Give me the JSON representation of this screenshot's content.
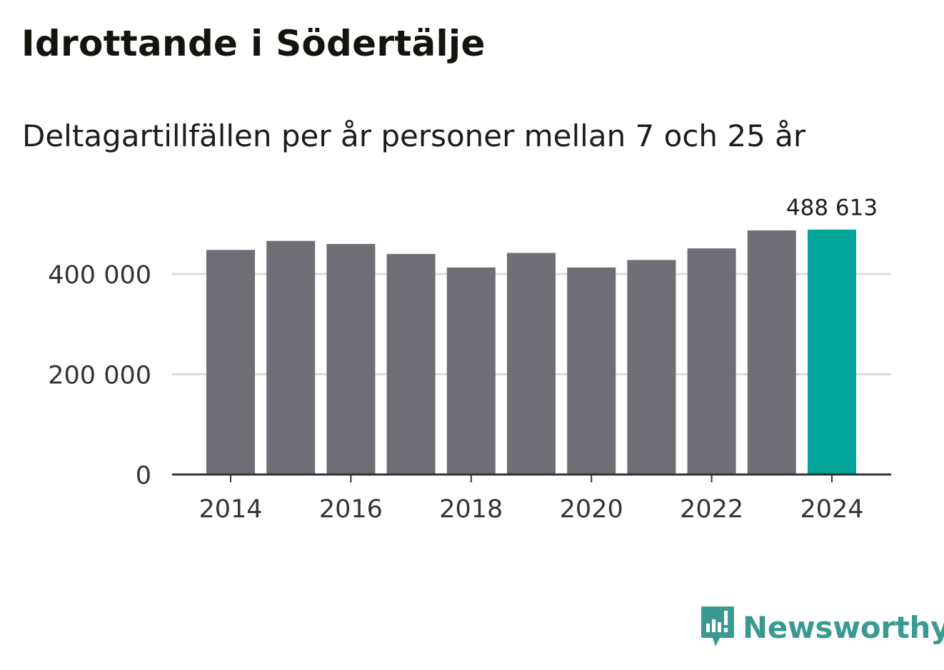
{
  "title": "Idrottande i Södertälje",
  "subtitle": "Deltagartillfällen per år personer mellan 7 och 25 år",
  "brand": {
    "name": "Newsworthy",
    "color": "#3a9a92",
    "icon": "newsworthy-logo-icon"
  },
  "colors": {
    "bar": "#6f6e74",
    "highlight": "#00a498",
    "grid": "#dcdcdc",
    "axis": "#333333"
  },
  "chart_data": {
    "type": "bar",
    "title": "Idrottande i Södertälje",
    "subtitle": "Deltagartillfällen per år personer mellan 7 och 25 år",
    "xlabel": "",
    "ylabel": "",
    "categories": [
      "2014",
      "2015",
      "2016",
      "2017",
      "2018",
      "2019",
      "2020",
      "2021",
      "2022",
      "2023",
      "2024"
    ],
    "values": [
      448000,
      466000,
      460000,
      440000,
      413000,
      442000,
      413000,
      428000,
      451000,
      487000,
      488613
    ],
    "highlight_index": 10,
    "annotation": {
      "category": "2024",
      "label": "488 613"
    },
    "ylim": [
      0,
      500000
    ],
    "yticks": [
      0,
      200000,
      400000
    ],
    "ytick_labels": [
      "0",
      "200 000",
      "400 000"
    ],
    "xtick_labels": [
      "2014",
      "2016",
      "2018",
      "2020",
      "2022",
      "2024"
    ],
    "grid": true,
    "legend": "none"
  }
}
